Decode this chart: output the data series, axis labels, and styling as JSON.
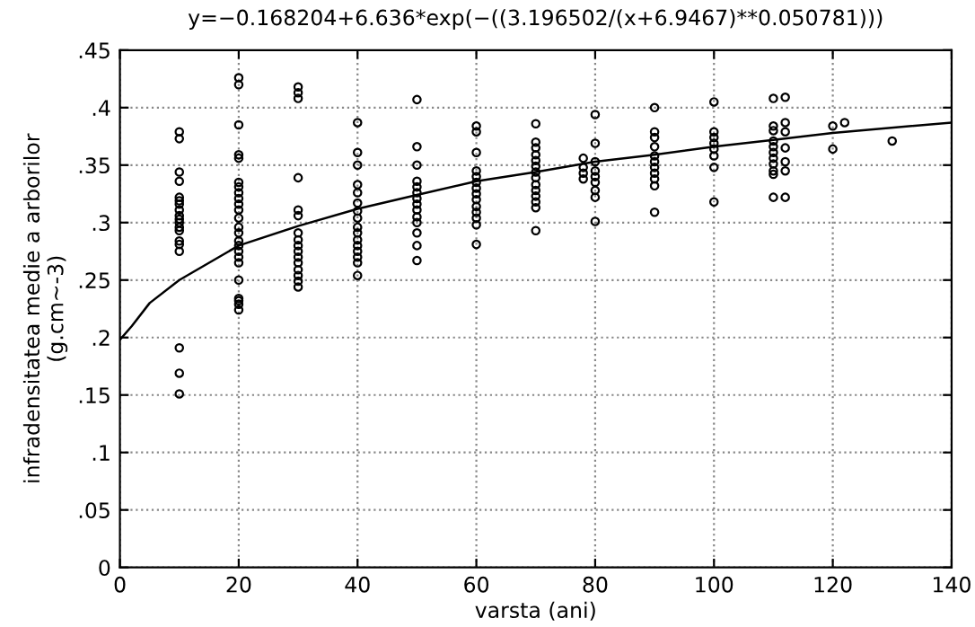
{
  "chart_data": {
    "type": "scatter",
    "title": "y=−0.168204+6.636*exp(−((3.196502/(x+6.9467)**0.050781)))",
    "xlabel": "varsta (ani)",
    "ylabel": "infradensitatea medie a arborilor\n(g.cm~-3)",
    "series": [
      {
        "color": "#000000",
        "marker": "circle",
        "x": [
          10,
          10,
          10,
          10,
          10,
          10,
          10,
          10,
          10,
          10,
          10,
          10,
          10,
          10,
          10,
          10,
          10,
          10,
          10,
          20,
          20,
          20,
          20,
          20,
          20,
          20,
          20,
          20,
          20,
          20,
          20,
          20,
          20,
          20,
          20,
          20,
          20,
          20,
          20,
          20,
          20,
          20,
          20,
          30,
          30,
          30,
          30,
          30,
          30,
          30,
          30,
          30,
          30,
          30,
          30,
          30,
          30,
          30,
          30,
          40,
          40,
          40,
          40,
          40,
          40,
          40,
          40,
          40,
          40,
          40,
          40,
          40,
          40,
          40,
          40,
          50,
          50,
          50,
          50,
          50,
          50,
          50,
          50,
          50,
          50,
          50,
          50,
          50,
          50,
          60,
          60,
          60,
          60,
          60,
          60,
          60,
          60,
          60,
          60,
          60,
          60,
          60,
          60,
          70,
          70,
          70,
          70,
          70,
          70,
          70,
          70,
          70,
          70,
          70,
          70,
          70,
          70,
          78,
          78,
          78,
          78,
          80,
          80,
          80,
          80,
          80,
          80,
          80,
          80,
          80,
          90,
          90,
          90,
          90,
          90,
          90,
          90,
          90,
          90,
          90,
          90,
          100,
          100,
          100,
          100,
          100,
          100,
          100,
          100,
          110,
          110,
          110,
          110,
          110,
          110,
          110,
          110,
          110,
          110,
          110,
          112,
          112,
          112,
          112,
          112,
          112,
          112,
          120,
          120,
          122,
          130
        ],
        "values": [
          0.379,
          0.373,
          0.344,
          0.336,
          0.322,
          0.319,
          0.316,
          0.311,
          0.306,
          0.303,
          0.3,
          0.296,
          0.293,
          0.284,
          0.281,
          0.275,
          0.191,
          0.169,
          0.151,
          0.426,
          0.42,
          0.385,
          0.359,
          0.356,
          0.335,
          0.331,
          0.326,
          0.321,
          0.316,
          0.311,
          0.304,
          0.296,
          0.291,
          0.284,
          0.28,
          0.275,
          0.27,
          0.265,
          0.25,
          0.234,
          0.232,
          0.229,
          0.224,
          0.418,
          0.413,
          0.408,
          0.339,
          0.311,
          0.306,
          0.291,
          0.285,
          0.28,
          0.275,
          0.27,
          0.265,
          0.259,
          0.254,
          0.249,
          0.244,
          0.387,
          0.361,
          0.35,
          0.333,
          0.326,
          0.317,
          0.31,
          0.304,
          0.296,
          0.291,
          0.285,
          0.28,
          0.275,
          0.27,
          0.265,
          0.254,
          0.407,
          0.366,
          0.35,
          0.336,
          0.331,
          0.326,
          0.321,
          0.316,
          0.311,
          0.305,
          0.3,
          0.291,
          0.28,
          0.267,
          0.384,
          0.379,
          0.361,
          0.345,
          0.34,
          0.335,
          0.33,
          0.325,
          0.32,
          0.314,
          0.309,
          0.304,
          0.298,
          0.281,
          0.386,
          0.37,
          0.365,
          0.359,
          0.354,
          0.349,
          0.344,
          0.339,
          0.333,
          0.328,
          0.323,
          0.318,
          0.313,
          0.293,
          0.356,
          0.348,
          0.343,
          0.338,
          0.394,
          0.369,
          0.353,
          0.345,
          0.34,
          0.335,
          0.328,
          0.322,
          0.301,
          0.4,
          0.379,
          0.374,
          0.366,
          0.358,
          0.353,
          0.348,
          0.343,
          0.338,
          0.332,
          0.309,
          0.405,
          0.379,
          0.374,
          0.369,
          0.364,
          0.358,
          0.348,
          0.318,
          0.408,
          0.384,
          0.38,
          0.371,
          0.366,
          0.361,
          0.356,
          0.351,
          0.345,
          0.342,
          0.322,
          0.409,
          0.387,
          0.379,
          0.365,
          0.353,
          0.345,
          0.322,
          0.384,
          0.364,
          0.387,
          0.371
        ]
      },
      {
        "type": "line",
        "color": "#000000",
        "marker": "none",
        "line_style": "solid",
        "x": [
          0,
          2,
          5,
          10,
          20,
          30,
          40,
          50,
          60,
          70,
          80,
          90,
          100,
          110,
          120,
          140
        ],
        "values": [
          0.198,
          0.21,
          0.23,
          0.25,
          0.28,
          0.297,
          0.312,
          0.324,
          0.336,
          0.344,
          0.353,
          0.359,
          0.366,
          0.372,
          0.378,
          0.387
        ]
      }
    ],
    "xlim": [
      0,
      140
    ],
    "xticks": [
      0,
      20,
      40,
      60,
      80,
      100,
      120,
      140
    ],
    "ylim": [
      0,
      0.45
    ],
    "yticks": [
      {
        "value": 0,
        "label": "0"
      },
      {
        "value": 0.05,
        "label": ".05"
      },
      {
        "value": 0.1,
        "label": ".1"
      },
      {
        "value": 0.15,
        "label": ".15"
      },
      {
        "value": 0.2,
        "label": ".2"
      },
      {
        "value": 0.25,
        "label": ".25"
      },
      {
        "value": 0.3,
        "label": ".3"
      },
      {
        "value": 0.35,
        "label": ".35"
      },
      {
        "value": 0.4,
        "label": ".4"
      },
      {
        "value": 0.45,
        "label": ".45"
      }
    ],
    "grid": true
  }
}
